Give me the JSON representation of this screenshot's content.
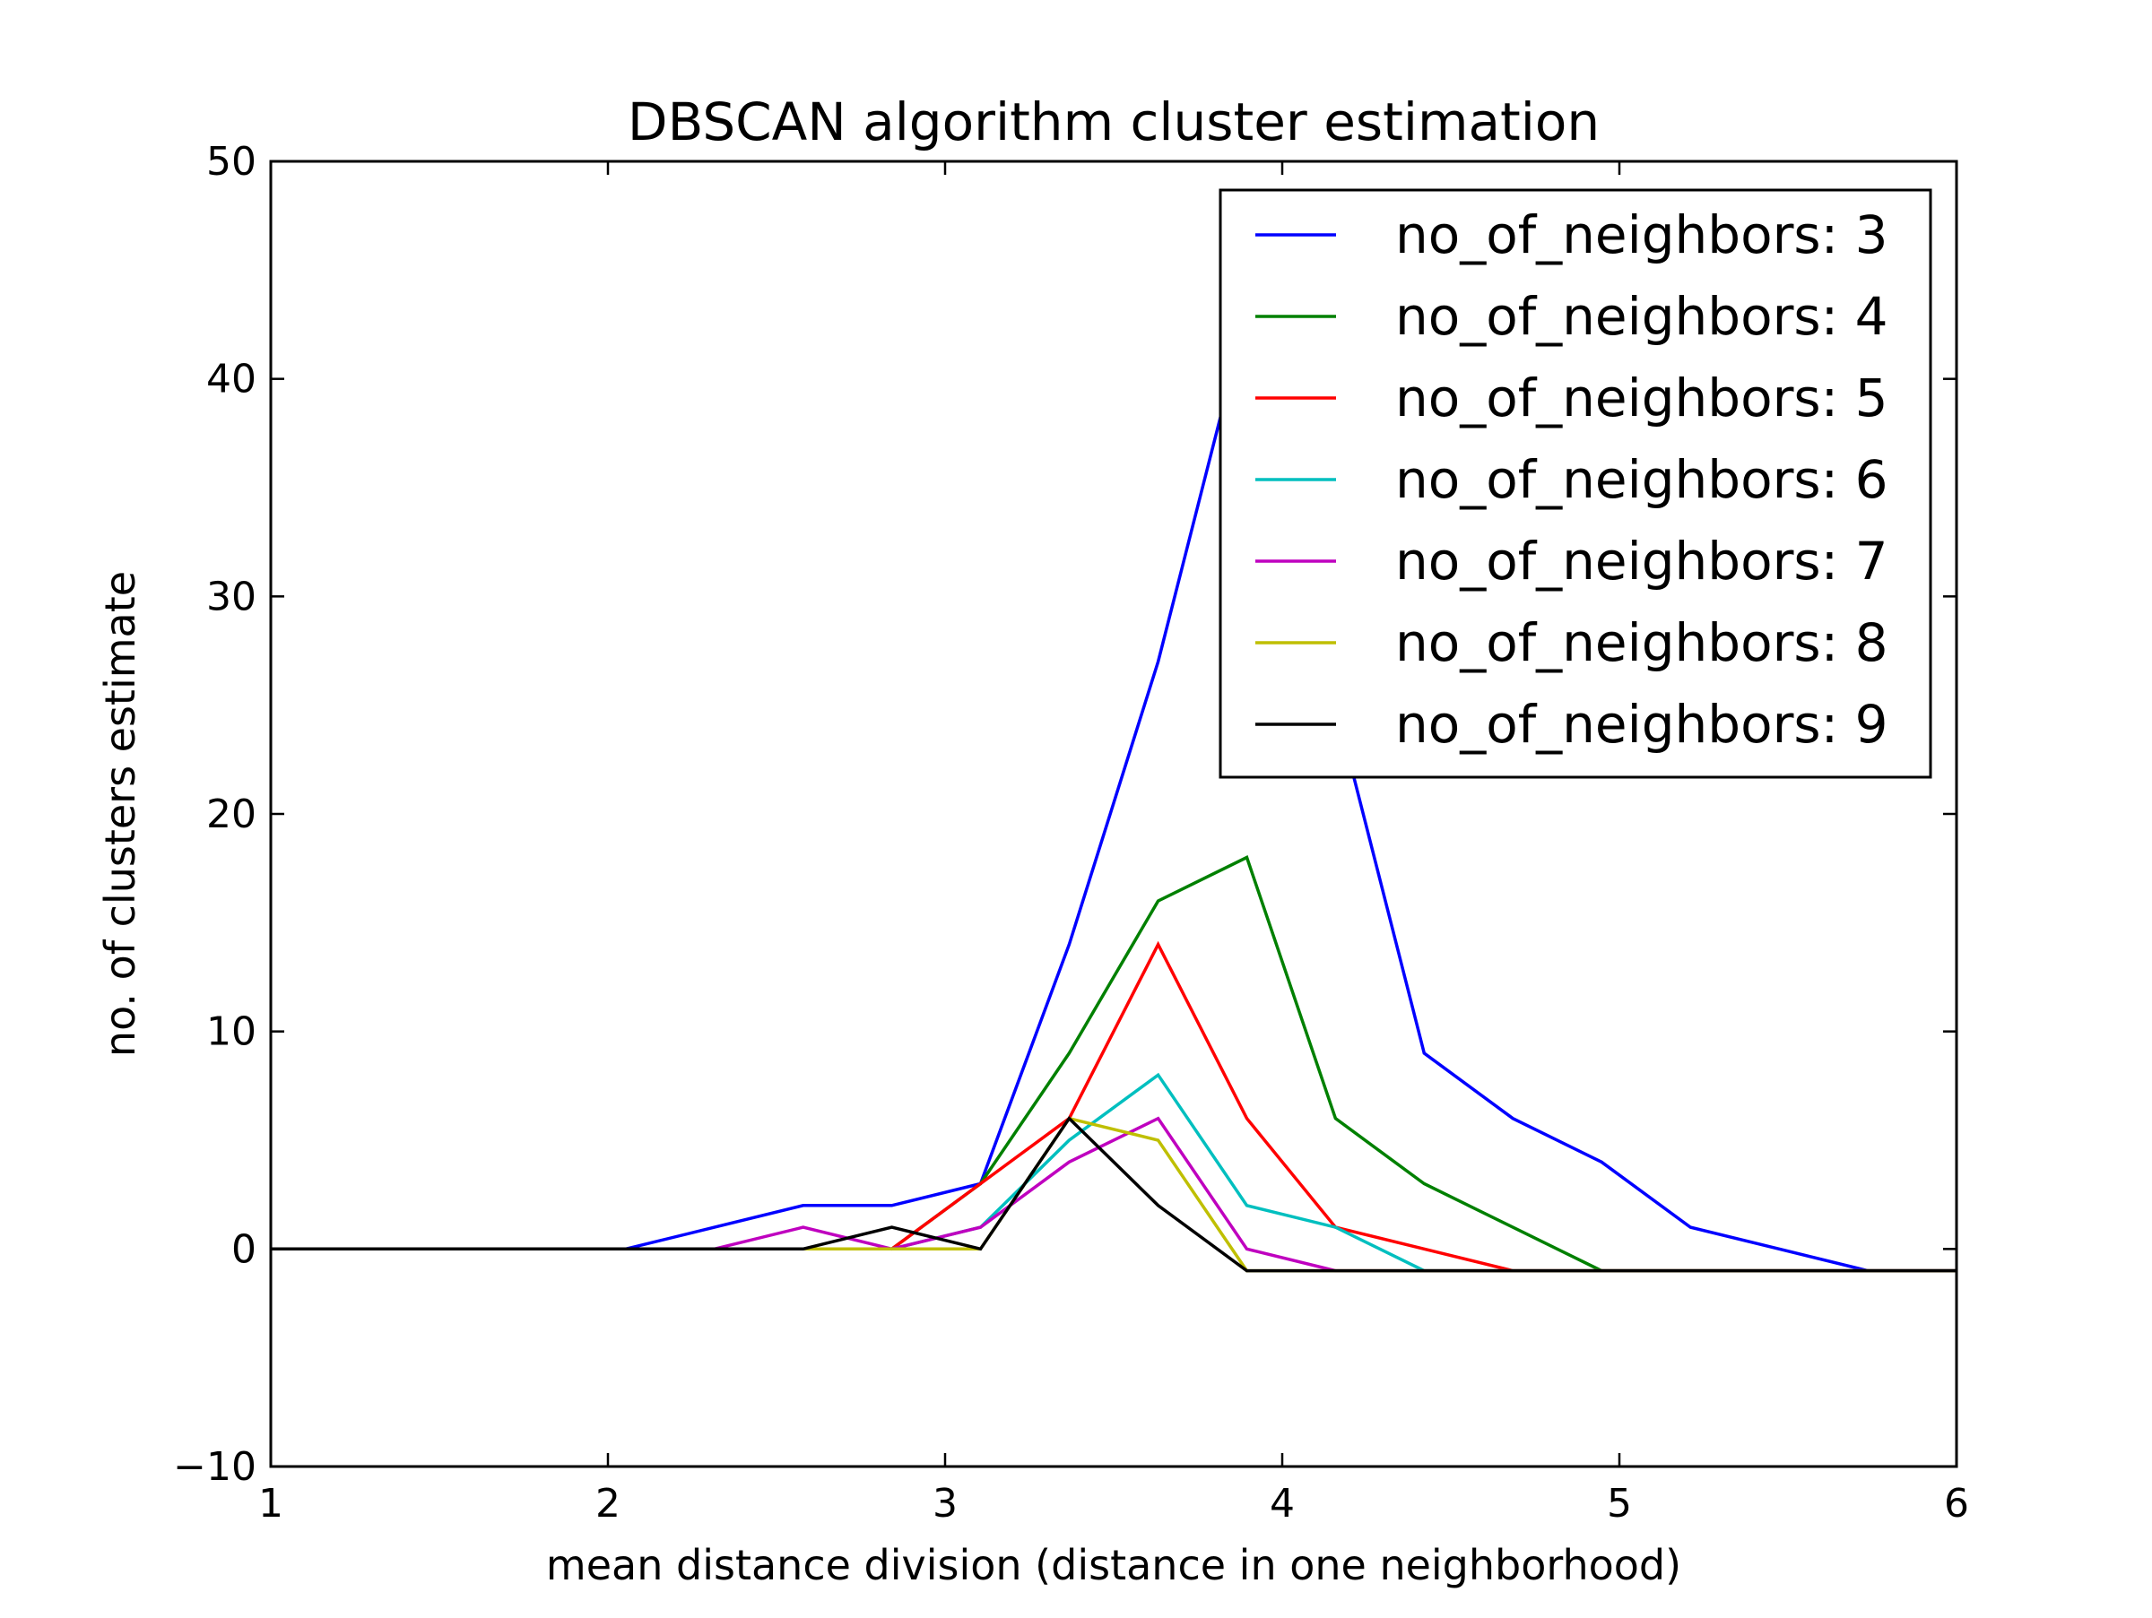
{
  "chart_data": {
    "type": "line",
    "title": "DBSCAN algorithm cluster estimation",
    "xlabel": "mean distance division (distance in one neighborhood)",
    "ylabel": "no. of clusters estimate",
    "xlim": [
      1,
      6
    ],
    "ylim": [
      -10,
      50
    ],
    "xticks": [
      1,
      2,
      3,
      4,
      5,
      6
    ],
    "xtick_labels": [
      "1",
      "2",
      "3",
      "4",
      "5",
      "6"
    ],
    "yticks": [
      -10,
      0,
      10,
      20,
      30,
      40,
      50
    ],
    "ytick_labels": [
      "−10",
      "0",
      "10",
      "20",
      "30",
      "40",
      "50"
    ],
    "grid": false,
    "legend_position": "top-right",
    "x": [
      1.0,
      1.263,
      1.526,
      1.789,
      2.053,
      2.316,
      2.579,
      2.842,
      3.105,
      3.368,
      3.632,
      3.895,
      4.158,
      4.421,
      4.684,
      4.947,
      5.211,
      5.474,
      5.737,
      6.0
    ],
    "series": [
      {
        "name": "no_of_neighbors: 3",
        "color": "#0000ff",
        "values": [
          0,
          0,
          0,
          0,
          0,
          1,
          2,
          2,
          3,
          14,
          27,
          43,
          25,
          9,
          6,
          4,
          1,
          0,
          -1,
          -1
        ]
      },
      {
        "name": "no_of_neighbors: 4",
        "color": "#008000",
        "values": [
          0,
          0,
          0,
          0,
          0,
          0,
          0,
          0,
          3,
          9,
          16,
          18,
          6,
          3,
          1,
          -1,
          -1,
          -1,
          -1,
          -1
        ]
      },
      {
        "name": "no_of_neighbors: 5",
        "color": "#ff0000",
        "values": [
          0,
          0,
          0,
          0,
          0,
          0,
          0,
          0,
          3,
          6,
          14,
          6,
          1,
          0,
          -1,
          -1,
          -1,
          -1,
          -1,
          -1
        ]
      },
      {
        "name": "no_of_neighbors: 6",
        "color": "#00bfbf",
        "values": [
          0,
          0,
          0,
          0,
          0,
          0,
          0,
          0,
          1,
          5,
          8,
          2,
          1,
          -1,
          -1,
          -1,
          -1,
          -1,
          -1,
          -1
        ]
      },
      {
        "name": "no_of_neighbors: 7",
        "color": "#bf00bf",
        "values": [
          0,
          0,
          0,
          0,
          0,
          0,
          1,
          0,
          1,
          4,
          6,
          0,
          -1,
          -1,
          -1,
          -1,
          -1,
          -1,
          -1,
          -1
        ]
      },
      {
        "name": "no_of_neighbors: 8",
        "color": "#bfbf00",
        "values": [
          0,
          0,
          0,
          0,
          0,
          0,
          0,
          0,
          0,
          6,
          5,
          -1,
          -1,
          -1,
          -1,
          -1,
          -1,
          -1,
          -1,
          -1
        ]
      },
      {
        "name": "no_of_neighbors: 9",
        "color": "#000000",
        "values": [
          0,
          0,
          0,
          0,
          0,
          0,
          0,
          1,
          0,
          6,
          2,
          -1,
          -1,
          -1,
          -1,
          -1,
          -1,
          -1,
          -1,
          -1
        ]
      }
    ]
  }
}
